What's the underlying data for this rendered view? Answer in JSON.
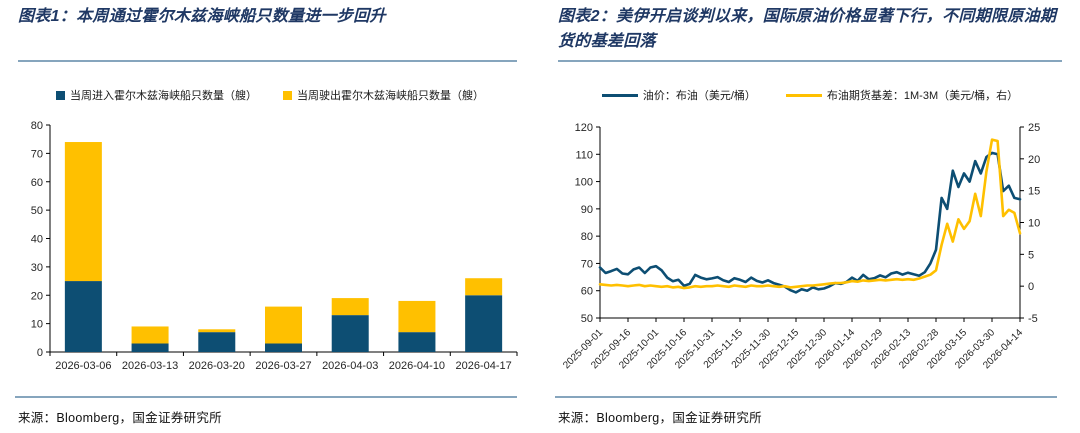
{
  "colors": {
    "blue": "#0d4e73",
    "yellow": "#ffc000",
    "rule": "#86a5bd",
    "title": "#1f3864",
    "tick_text": "#262626",
    "axis": "#000000"
  },
  "panels": {
    "left": {
      "title": "图表1：本周通过霍尔木兹海峡船只数量进一步回升",
      "source": "来源：Bloomberg，国金证券研究所",
      "legend": [
        {
          "label": "当周进入霍尔木兹海峡船只数量（艘）",
          "color": "#0d4e73",
          "marker": "square"
        },
        {
          "label": "当周驶出霍尔木兹海峡船只数量（艘）",
          "color": "#ffc000",
          "marker": "square"
        }
      ]
    },
    "right": {
      "title": "图表2：美伊开启谈判以来，国际原油价格显著下行，不同期限原油期货的基差回落",
      "source": "来源：Bloomberg，国金证券研究所",
      "legend": [
        {
          "label": "油价：布油（美元/桶）",
          "color": "#0d4e73",
          "marker": "line"
        },
        {
          "label": "布油期货基差：1M-3M（美元/桶，右）",
          "color": "#ffc000",
          "marker": "line"
        }
      ]
    }
  },
  "chart_data": [
    {
      "type": "bar",
      "stacked": true,
      "title": "本周通过霍尔木兹海峡船只数量进一步回升",
      "categories": [
        "2026-03-06",
        "2026-03-13",
        "2026-03-20",
        "2026-03-27",
        "2026-04-03",
        "2026-04-10",
        "2026-04-17"
      ],
      "series": [
        {
          "name": "当周进入霍尔木兹海峡船只数量（艘）",
          "color": "#0d4e73",
          "values": [
            25,
            3,
            7,
            3,
            13,
            7,
            20
          ]
        },
        {
          "name": "当周驶出霍尔木兹海峡船只数量（艘）",
          "color": "#ffc000",
          "values": [
            49,
            6,
            1,
            13,
            6,
            11,
            6
          ]
        }
      ],
      "stack_totals": [
        74,
        9,
        8,
        16,
        19,
        18,
        26
      ],
      "xlabel": "",
      "ylabel": "",
      "ylim": [
        0,
        80
      ],
      "ytick_step": 10,
      "grid": false,
      "legend_position": "top"
    },
    {
      "type": "line",
      "title": "美伊开启谈判以来，国际原油价格显著下行，不同期限原油期货的基差回落",
      "x_start_date": "2025-09-01",
      "x_end_date": "2026-04-14",
      "x_day_step": 3,
      "x_day_range": [
        0,
        225
      ],
      "x_tick_days": [
        0,
        15,
        30,
        45,
        60,
        75,
        90,
        105,
        120,
        135,
        150,
        165,
        180,
        195,
        210,
        225
      ],
      "x_tick_labels": [
        "2025-09-01",
        "2025-09-16",
        "2025-10-01",
        "2025-10-16",
        "2025-10-31",
        "2025-11-15",
        "2025-11-30",
        "2025-12-15",
        "2025-12-30",
        "2026-01-14",
        "2026-01-29",
        "2026-02-13",
        "2026-02-28",
        "2026-03-15",
        "2026-03-30",
        "2026-04-14"
      ],
      "ylim_left": [
        50,
        120
      ],
      "ytick_step_left": 10,
      "ylim_right": [
        -5,
        25
      ],
      "ytick_step_right": 5,
      "grid": false,
      "legend_position": "top",
      "series": [
        {
          "name": "油价：布油（美元/桶）",
          "axis": "left",
          "color": "#0d4e73",
          "values": [
            68.5,
            66.5,
            67.2,
            68.0,
            66.3,
            66.0,
            67.8,
            68.5,
            66.5,
            68.5,
            69.0,
            67.5,
            64.8,
            63.5,
            64.0,
            61.8,
            62.5,
            65.8,
            64.8,
            64.2,
            64.5,
            65.0,
            63.8,
            63.2,
            64.6,
            64.0,
            63.2,
            64.8,
            63.6,
            63.0,
            63.8,
            62.8,
            62.2,
            61.5,
            60.2,
            59.4,
            60.5,
            60.0,
            61.2,
            60.5,
            60.8,
            61.6,
            62.8,
            62.5,
            63.2,
            64.8,
            63.6,
            65.8,
            64.2,
            64.6,
            65.6,
            64.9,
            66.3,
            66.8,
            65.9,
            66.6,
            66.0,
            65.5,
            66.8,
            70.0,
            75.0,
            94.0,
            90.0,
            104.0,
            98.0,
            103.0,
            100.0,
            107.5,
            103.0,
            109.0,
            110.5,
            110.0,
            96.5,
            98.5,
            94.0,
            93.5
          ]
        },
        {
          "name": "布油期货基差：1M-3M（美元/桶，右）",
          "axis": "right",
          "color": "#ffc000",
          "values": [
            0.3,
            0.2,
            0.1,
            0.2,
            0.1,
            0.0,
            0.1,
            0.2,
            0.0,
            0.1,
            0.0,
            -0.1,
            0.0,
            -0.2,
            -0.1,
            -0.3,
            -0.2,
            0.0,
            -0.1,
            0.0,
            0.0,
            0.1,
            0.0,
            -0.1,
            0.1,
            0.0,
            -0.1,
            0.1,
            0.0,
            0.0,
            0.1,
            0.0,
            -0.1,
            0.0,
            -0.2,
            -0.1,
            0.0,
            0.1,
            0.1,
            0.2,
            0.3,
            0.4,
            0.5,
            0.5,
            0.6,
            0.8,
            0.7,
            0.9,
            0.8,
            0.9,
            1.0,
            0.9,
            1.0,
            1.1,
            1.0,
            1.1,
            1.0,
            1.2,
            1.5,
            1.8,
            2.5,
            6.5,
            9.8,
            7.0,
            10.5,
            9.0,
            10.2,
            14.5,
            11.0,
            18.0,
            23.0,
            22.8,
            11.0,
            12.0,
            11.5,
            8.3
          ]
        }
      ]
    }
  ]
}
